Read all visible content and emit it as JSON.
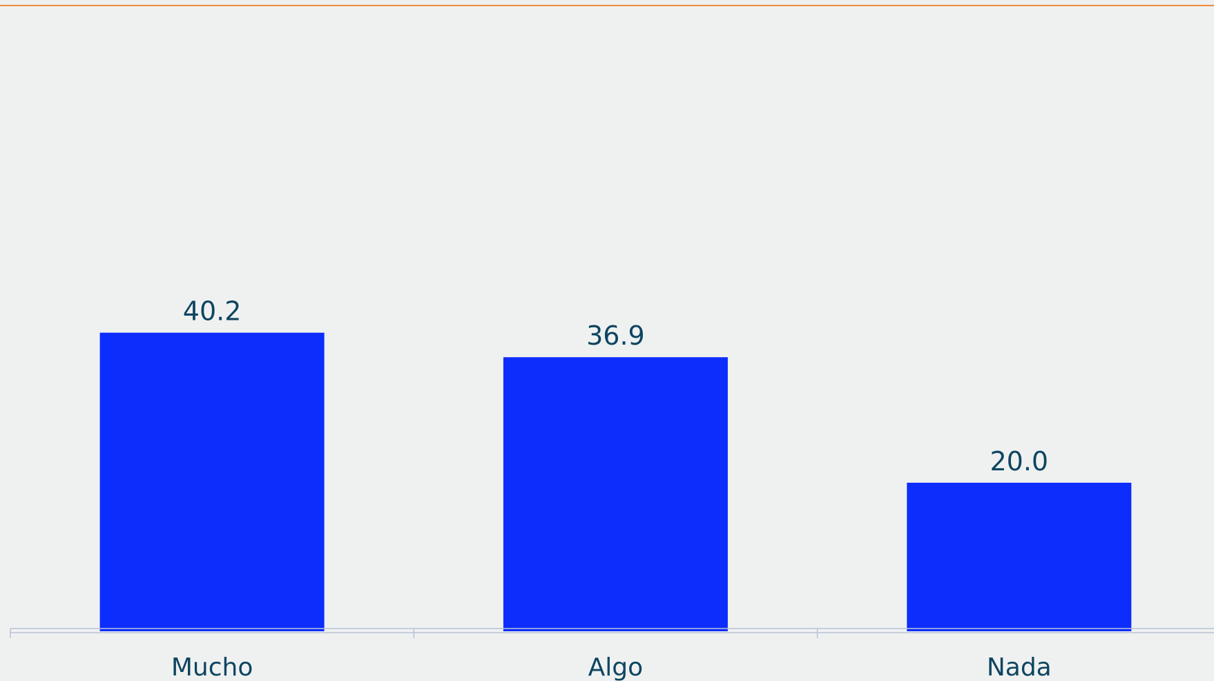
{
  "colors": {
    "background": "#eff1f1",
    "bar": "#0d2dfd",
    "top_rule": "#ef8a3c",
    "axis": "#b9c3d4",
    "text": "#0d4560"
  },
  "chart_data": {
    "type": "bar",
    "title": "",
    "xlabel": "",
    "ylabel": "",
    "categories": [
      "Mucho",
      "Algo",
      "Nada"
    ],
    "values": [
      40.2,
      36.9,
      20.0
    ],
    "value_labels": [
      "40.2",
      "36.9",
      "20.0"
    ],
    "ylim": [
      0,
      85
    ],
    "grid": false,
    "legend": "none"
  }
}
